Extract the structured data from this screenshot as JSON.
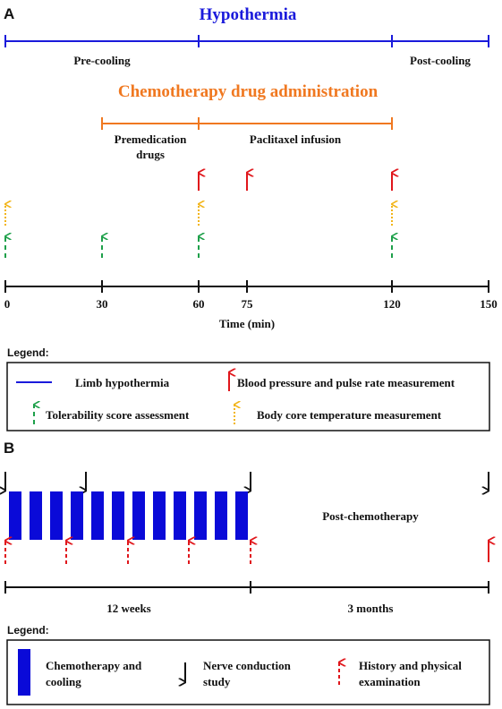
{
  "panel_a": {
    "label": "A",
    "hypothermia_title": "Hypothermia",
    "pre_cooling": "Pre-cooling",
    "post_cooling": "Post-cooling",
    "chemo_title": "Chemotherapy drug administration",
    "premedication_line1": "Premedication",
    "premedication_line2": "drugs",
    "paclitaxel": "Paclitaxel infusion",
    "ticks": [
      "0",
      "30",
      "60",
      "75",
      "120",
      "150"
    ],
    "axis_label": "Time (min)",
    "legend_title": "Legend:",
    "legend": {
      "limb": "Limb hypothermia",
      "bp": "Blood pressure and pulse rate measurement",
      "tolerability": "Tolerability score assessment",
      "body_temp": "Body core temperature measurement"
    }
  },
  "panel_b": {
    "label": "B",
    "post_chemo": "Post-chemotherapy",
    "weeks": "12 weeks",
    "months": "3 months",
    "legend_title": "Legend:",
    "legend": {
      "chemo_line1": "Chemotherapy and",
      "chemo_line2": "cooling",
      "nerve_line1": "Nerve conduction",
      "nerve_line2": "study",
      "history_line1": "History and physical",
      "history_line2": "examination"
    }
  },
  "colors": {
    "hypothermia": "#1a1adb",
    "chemo": "#f07820",
    "blood_pressure": "#e0161b",
    "tolerability": "#1ea04a",
    "body_temp": "#f2b51a",
    "block": "#0a0ad8",
    "text": "#111111"
  }
}
